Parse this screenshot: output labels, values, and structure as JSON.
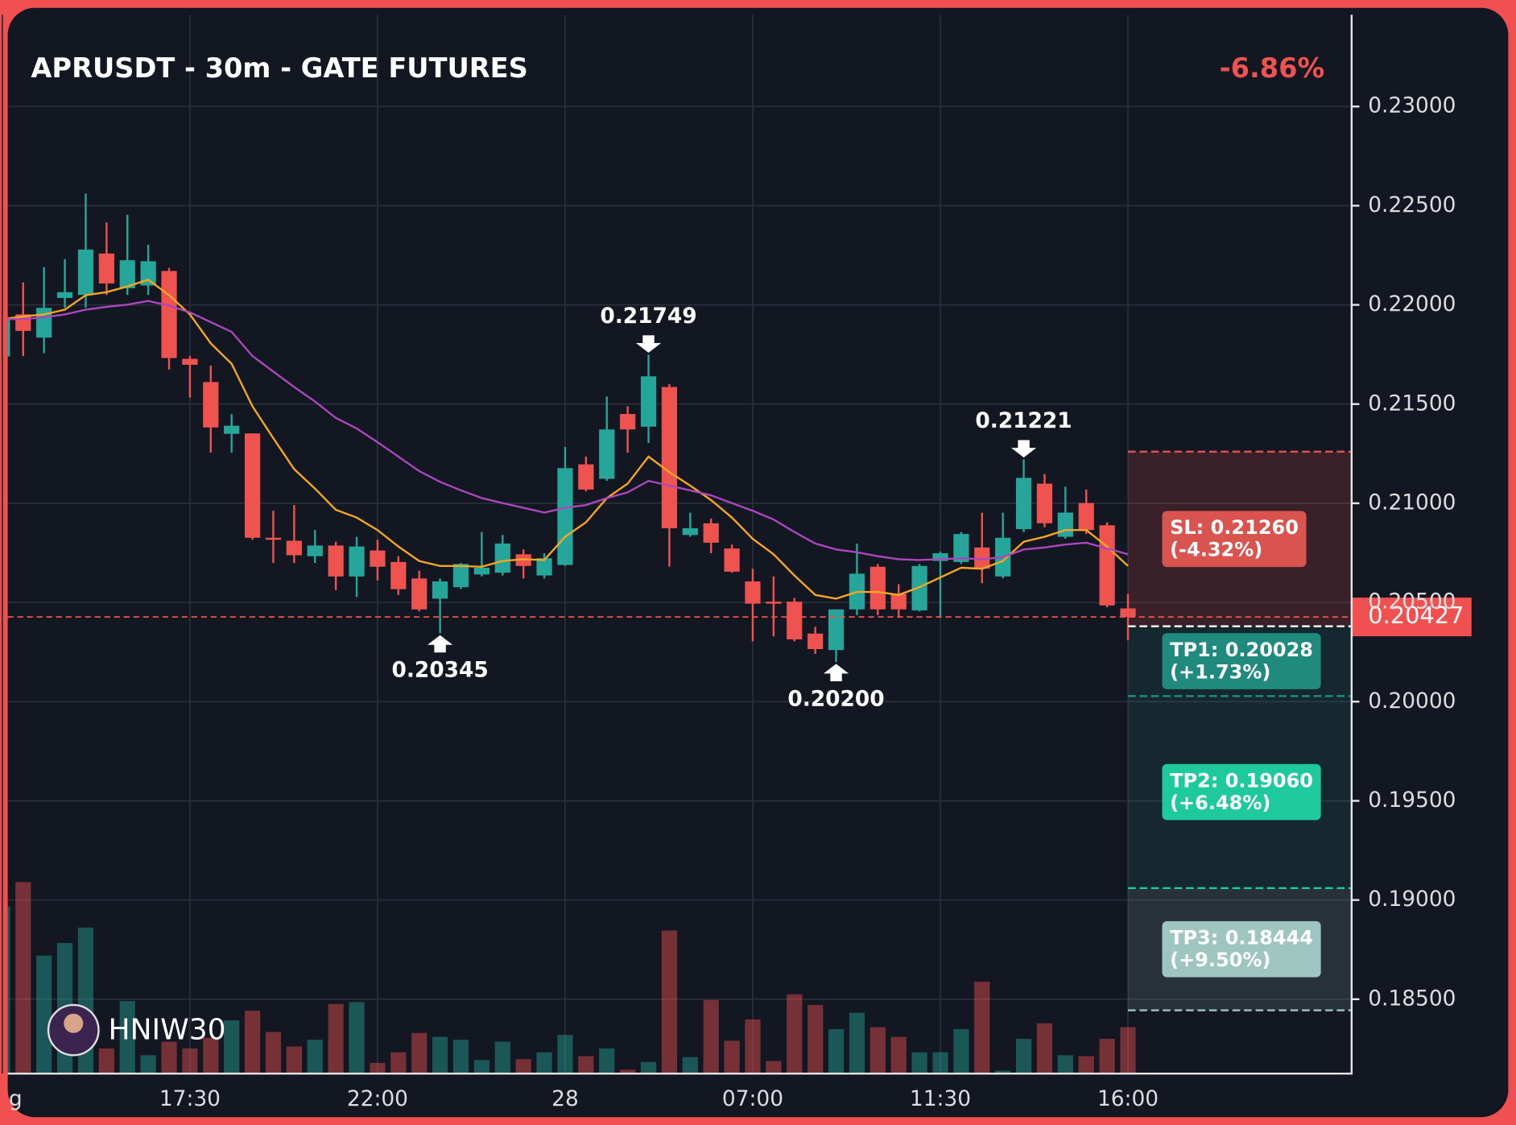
{
  "chart_data": {
    "type": "candlestick",
    "title": "APRUSDT - 30m - GATE FUTURES",
    "change": "-6.86%",
    "watermark": "HNIW30",
    "categories": [
      "g",
      null,
      null,
      null,
      null,
      null,
      null,
      null,
      null,
      "17:30",
      null,
      null,
      null,
      null,
      null,
      null,
      null,
      null,
      "22:00",
      null,
      null,
      null,
      null,
      null,
      null,
      null,
      null,
      "28",
      null,
      null,
      null,
      null,
      null,
      null,
      null,
      null,
      "07:00",
      null,
      null,
      null,
      null,
      null,
      null,
      null,
      null,
      "11:30",
      null,
      null,
      null,
      null,
      null,
      null,
      null,
      null,
      "16:00"
    ],
    "open": [
      0.2174,
      0.21952,
      0.21835,
      0.22035,
      0.2205,
      0.22259,
      0.22084,
      0.22098,
      0.22171,
      0.21728,
      0.21611,
      0.2135,
      0.21352,
      0.20826,
      0.20811,
      0.20733,
      0.20787,
      0.20631,
      0.20762,
      0.20704,
      0.20621,
      0.20519,
      0.20577,
      0.20641,
      0.2065,
      0.20743,
      0.20636,
      0.20689,
      0.21196,
      0.21123,
      0.2145,
      0.21386,
      0.21586,
      0.2084,
      0.20899,
      0.20772,
      0.20606,
      0.20504,
      0.20504,
      0.20343,
      0.2026,
      0.20465,
      0.2068,
      0.20543,
      0.2046,
      0.20709,
      0.20704,
      0.20777,
      0.20631,
      0.2087,
      0.21099,
      0.20831,
      0.21001,
      0.20889,
      0.2047
    ],
    "high": [
      0.2195,
      0.22113,
      0.2219,
      0.2223,
      0.22561,
      0.22415,
      0.22454,
      0.22303,
      0.22186,
      0.21742,
      0.21694,
      0.2145,
      0.21352,
      0.20962,
      0.20991,
      0.20865,
      0.20806,
      0.20831,
      0.20816,
      0.20733,
      0.2066,
      0.20621,
      0.20699,
      0.20855,
      0.2084,
      0.20767,
      0.20748,
      0.21284,
      0.21235,
      0.21538,
      0.21489,
      0.21749,
      0.21601,
      0.20952,
      0.20923,
      0.20792,
      0.2067,
      0.20631,
      0.20523,
      0.20377,
      0.20465,
      0.20797,
      0.20694,
      0.20592,
      0.20694,
      0.20757,
      0.20855,
      0.20952,
      0.20952,
      0.21221,
      0.21147,
      0.21084,
      0.21069,
      0.20904,
      0.20543
    ],
    "low": [
      0.2172,
      0.21742,
      0.21757,
      0.21986,
      0.21986,
      0.2205,
      0.2205,
      0.2205,
      0.21674,
      0.21533,
      0.21255,
      0.21255,
      0.20816,
      0.20699,
      0.20699,
      0.20699,
      0.20562,
      0.20528,
      0.20611,
      0.20538,
      0.20455,
      0.20345,
      0.20567,
      0.20631,
      0.20636,
      0.20621,
      0.20621,
      0.20684,
      0.2106,
      0.21113,
      0.21255,
      0.21304,
      0.2068,
      0.20831,
      0.20748,
      0.2065,
      0.20304,
      0.20329,
      0.20304,
      0.20241,
      0.202,
      0.20436,
      0.20436,
      0.20426,
      0.20455,
      0.20426,
      0.20694,
      0.20597,
      0.20621,
      0.20855,
      0.20879,
      0.20821,
      0.20845,
      0.20475,
      0.20309
    ],
    "close": [
      0.2193,
      0.21869,
      0.21985,
      0.22064,
      0.22279,
      0.22108,
      0.22225,
      0.2222,
      0.21732,
      0.21698,
      0.21382,
      0.21391,
      0.20826,
      0.20816,
      0.20738,
      0.20787,
      0.20631,
      0.20782,
      0.2068,
      0.20567,
      0.20465,
      0.20606,
      0.20694,
      0.20675,
      0.20797,
      0.20684,
      0.20723,
      0.21177,
      0.21069,
      0.21372,
      0.21372,
      0.2164,
      0.20874,
      0.20874,
      0.20801,
      0.20655,
      0.20494,
      0.20494,
      0.20314,
      0.20265,
      0.20465,
      0.20645,
      0.20465,
      0.20465,
      0.20684,
      0.20748,
      0.20845,
      0.2067,
      0.20826,
      0.21128,
      0.20899,
      0.20953,
      0.20865,
      0.20485,
      0.20427
    ],
    "volume": [
      173,
      198,
      122,
      135,
      151,
      26,
      75,
      19,
      33,
      26,
      37,
      55,
      65,
      43,
      28,
      35,
      72,
      74,
      11,
      22,
      42,
      38,
      35,
      14,
      33,
      15,
      22,
      40,
      18,
      26,
      4,
      12,
      148,
      17,
      76,
      34,
      56,
      13,
      82,
      71,
      46,
      63,
      48,
      38,
      22,
      22,
      46,
      95,
      3,
      36,
      52,
      19,
      18,
      36,
      48
    ],
    "volume_ylim": [
      0,
      250
    ],
    "up_color": "#26a69a",
    "down_color": "#ef5350",
    "ma": [
      {
        "color": "#f5a623",
        "values": [
          0.21928,
          0.21942,
          0.21952,
          0.21976,
          0.22049,
          0.22064,
          0.22093,
          0.22127,
          0.22049,
          0.21952,
          0.21806,
          0.21703,
          0.21489,
          0.21328,
          0.21172,
          0.21074,
          0.20967,
          0.20928,
          0.20865,
          0.20782,
          0.20709,
          0.20684,
          0.20684,
          0.2068,
          0.20709,
          0.20718,
          0.20714,
          0.20831,
          0.20904,
          0.21026,
          0.21099,
          0.21235,
          0.21157,
          0.21089,
          0.21016,
          0.20928,
          0.20821,
          0.20743,
          0.20636,
          0.20538,
          0.20519,
          0.20553,
          0.20553,
          0.20538,
          0.20577,
          0.20626,
          0.20675,
          0.2067,
          0.20709,
          0.20806,
          0.20831,
          0.20865,
          0.20865,
          0.20782,
          0.20684
        ]
      },
      {
        "color": "#ab47bc",
        "values": [
          0.21928,
          0.21928,
          0.21937,
          0.21952,
          0.21976,
          0.2199,
          0.22001,
          0.2202,
          0.21996,
          0.21962,
          0.21913,
          0.21864,
          0.21742,
          0.21664,
          0.21586,
          0.21513,
          0.2143,
          0.21377,
          0.21308,
          0.21235,
          0.21162,
          0.21108,
          0.21065,
          0.21026,
          0.21001,
          0.20977,
          0.20953,
          0.20977,
          0.20991,
          0.21026,
          0.21055,
          0.21113,
          0.21089,
          0.21065,
          0.2104,
          0.21001,
          0.20962,
          0.20918,
          0.20855,
          0.20797,
          0.20767,
          0.20753,
          0.20733,
          0.20718,
          0.20714,
          0.20718,
          0.20723,
          0.20718,
          0.20728,
          0.20767,
          0.20777,
          0.20792,
          0.20801,
          0.20772,
          0.20743
        ]
      }
    ],
    "ylim": [
      0.18125,
      0.23463
    ],
    "yticks": [
      {
        "value": 0.23,
        "label": "0.23000"
      },
      {
        "value": 0.225,
        "label": "0.22500"
      },
      {
        "value": 0.22,
        "label": "0.22000"
      },
      {
        "value": 0.215,
        "label": "0.21500"
      },
      {
        "value": 0.21,
        "label": "0.21000"
      },
      {
        "value": 0.205,
        "label": "0.20500"
      },
      {
        "value": 0.2,
        "label": "0.20000"
      },
      {
        "value": 0.195,
        "label": "0.19500"
      },
      {
        "value": 0.19,
        "label": "0.19000"
      },
      {
        "value": 0.185,
        "label": "0.18500"
      }
    ],
    "grid": true,
    "markers": [
      {
        "value": 0.21749,
        "label": "0.21749"
      },
      {
        "value": 0.20345,
        "label": "0.20345"
      },
      {
        "value": 0.202,
        "label": "0.20200"
      },
      {
        "value": 0.21221,
        "label": "0.21221"
      }
    ],
    "last_price": {
      "value": 0.20427,
      "label": "0.20427"
    },
    "entry": 0.2038,
    "levels": [
      {
        "value": 0.2126,
        "label": [
          "SL: 0.21260",
          "(-4.32%)"
        ],
        "color": "#d9534f"
      },
      {
        "value": 0.20028,
        "label": [
          "TP1: 0.20028",
          "(+1.73%)"
        ],
        "color": "#1f8a7d"
      },
      {
        "value": 0.1906,
        "label": [
          "TP2: 0.19060",
          "(+6.48%)"
        ],
        "color": "#1ec99b"
      },
      {
        "value": 0.18444,
        "label": [
          "TP3: 0.18444",
          "(+9.50%)"
        ],
        "color": "#9fc5c0"
      }
    ]
  }
}
